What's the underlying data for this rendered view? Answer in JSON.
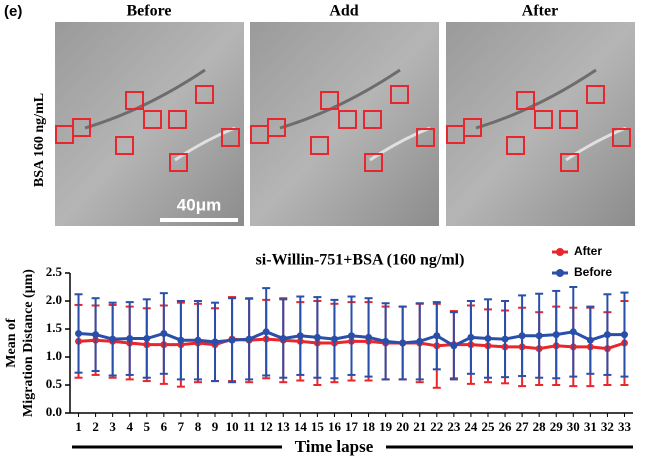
{
  "figure": {
    "label": "(e)",
    "columns": [
      "Before",
      "Add",
      "After"
    ],
    "row_label": "BSA 160 ng/mL",
    "scale_bar": "40μm"
  },
  "chart_data": {
    "type": "line",
    "title": "si-Willin-751+BSA (160 ng/ml)",
    "ylabel": [
      "Mean of",
      "Migration Distance (μm)"
    ],
    "xlabel": "Time lapse",
    "categories": [
      "1",
      "2",
      "3",
      "4",
      "5",
      "6",
      "7",
      "8",
      "9",
      "10",
      "11",
      "12",
      "13",
      "14",
      "15",
      "16",
      "17",
      "18",
      "19",
      "20",
      "21",
      "22",
      "23",
      "24",
      "25",
      "26",
      "27",
      "28",
      "29",
      "30",
      "31",
      "32",
      "33"
    ],
    "series": [
      {
        "name": "After",
        "color": "#e8262d",
        "values": [
          1.28,
          1.3,
          1.28,
          1.25,
          1.22,
          1.22,
          1.22,
          1.25,
          1.22,
          1.32,
          1.3,
          1.32,
          1.3,
          1.28,
          1.25,
          1.25,
          1.28,
          1.28,
          1.25,
          1.25,
          1.25,
          1.2,
          1.22,
          1.22,
          1.2,
          1.18,
          1.18,
          1.15,
          1.2,
          1.18,
          1.18,
          1.15,
          1.25
        ],
        "errors": [
          0.65,
          0.62,
          0.65,
          0.65,
          0.65,
          0.7,
          0.75,
          0.7,
          0.65,
          0.75,
          0.75,
          0.7,
          0.75,
          0.7,
          0.75,
          0.7,
          0.7,
          0.7,
          0.65,
          0.65,
          0.7,
          0.75,
          0.6,
          0.7,
          0.65,
          0.65,
          0.7,
          0.65,
          0.7,
          0.7,
          0.7,
          0.65,
          0.75
        ]
      },
      {
        "name": "Before",
        "color": "#2a4fa8",
        "values": [
          1.42,
          1.4,
          1.32,
          1.33,
          1.33,
          1.42,
          1.3,
          1.3,
          1.27,
          1.3,
          1.32,
          1.45,
          1.33,
          1.38,
          1.35,
          1.32,
          1.38,
          1.35,
          1.28,
          1.25,
          1.28,
          1.38,
          1.2,
          1.35,
          1.33,
          1.32,
          1.38,
          1.38,
          1.4,
          1.45,
          1.3,
          1.4,
          1.4
        ],
        "errors": [
          0.7,
          0.65,
          0.65,
          0.65,
          0.7,
          0.72,
          0.7,
          0.7,
          0.7,
          0.75,
          0.72,
          0.78,
          0.7,
          0.7,
          0.72,
          0.7,
          0.7,
          0.7,
          0.68,
          0.65,
          0.68,
          0.6,
          0.6,
          0.65,
          0.7,
          0.68,
          0.72,
          0.75,
          0.78,
          0.8,
          0.6,
          0.72,
          0.75
        ]
      }
    ],
    "ylim": [
      0,
      2.5
    ],
    "yticks": [
      {
        "value": 0,
        "label": "0.0"
      },
      0.5,
      {
        "value": 1,
        "label": "1.0"
      },
      1.5,
      {
        "value": 2,
        "label": "2.0"
      },
      2.5
    ],
    "legend": "upper right"
  }
}
